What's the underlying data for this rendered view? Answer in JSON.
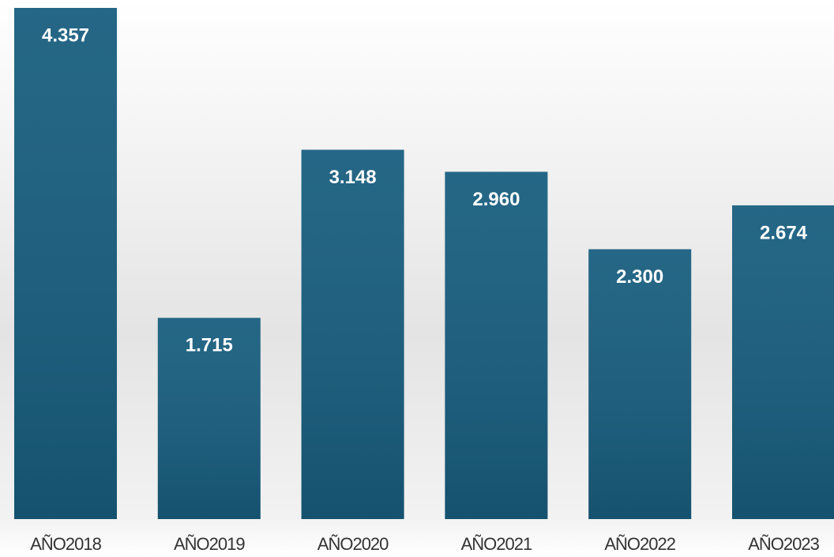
{
  "chart_data": {
    "type": "bar",
    "categories": [
      "AÑO2018",
      "AÑO2019",
      "AÑO2020",
      "AÑO2021",
      "AÑO2022",
      "AÑO2023"
    ],
    "values": [
      4357,
      1715,
      3148,
      2960,
      2300,
      2674
    ],
    "value_labels": [
      "4.357",
      "1.715",
      "3.148",
      "2.960",
      "2.300",
      "2.674"
    ],
    "color": "#175d7e"
  }
}
